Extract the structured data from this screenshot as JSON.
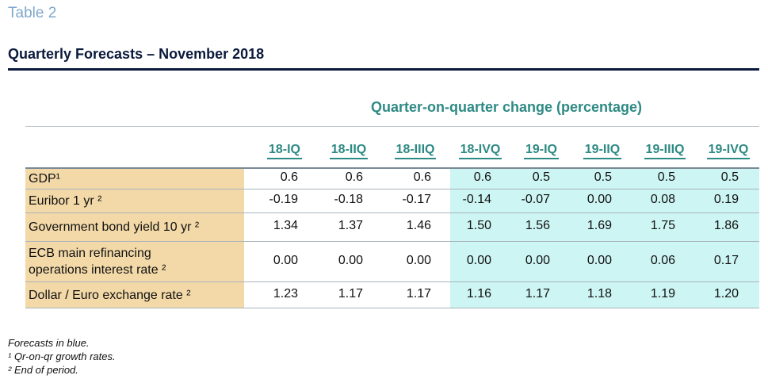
{
  "table_label": "Table 2",
  "title": "Quarterly Forecasts – November 2018",
  "caption": "Quarter-on-quarter change (percentage)",
  "columns": [
    "18-IQ",
    "18-IIQ",
    "18-IIIQ",
    "18-IVQ",
    "19-IQ",
    "19-IIQ",
    "19-IIIQ",
    "19-IVQ"
  ],
  "rows": [
    {
      "label": "GDP¹",
      "values": [
        "0.6",
        "0.6",
        "0.6",
        "0.6",
        "0.5",
        "0.5",
        "0.5",
        "0.5"
      ]
    },
    {
      "label": "Euribor 1 yr ²",
      "values": [
        "-0.19",
        "-0.18",
        "-0.17",
        "-0.14",
        "-0.07",
        "0.00",
        "0.08",
        "0.19"
      ]
    },
    {
      "label": "Government bond yield 10 yr ²",
      "values": [
        "1.34",
        "1.37",
        "1.46",
        "1.50",
        "1.56",
        "1.69",
        "1.75",
        "1.86"
      ]
    },
    {
      "label_line1": "ECB main refinancing",
      "label_line2": "operations interest rate ²",
      "values": [
        "0.00",
        "0.00",
        "0.00",
        "0.00",
        "0.00",
        "0.00",
        "0.06",
        "0.17"
      ]
    },
    {
      "label": "Dollar / Euro exchange rate ²",
      "values": [
        "1.23",
        "1.17",
        "1.17",
        "1.16",
        "1.17",
        "1.18",
        "1.19",
        "1.20"
      ]
    }
  ],
  "notes": [
    "Forecasts in blue.",
    "¹ Qr-on-qr growth rates.",
    "² End of period."
  ],
  "colors": {
    "accent": "#2e8a84",
    "label_bg": "#f3d9a8",
    "forecast_bg": "#ccf5f3",
    "title": "#0b1a3c"
  }
}
